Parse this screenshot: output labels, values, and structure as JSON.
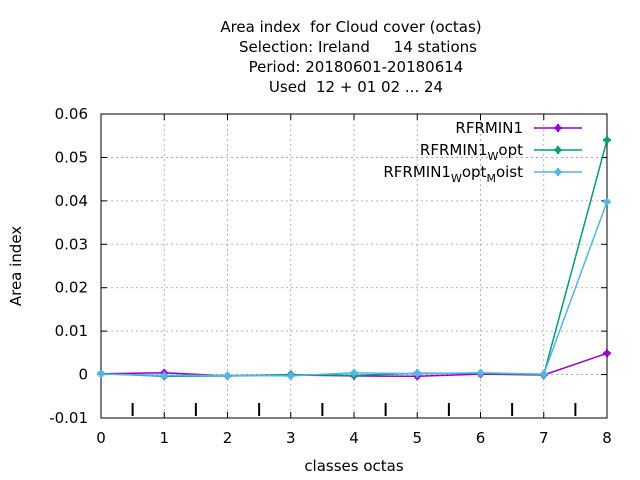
{
  "chart_data": {
    "type": "line",
    "title_lines": [
      "Area index  for Cloud cover (octas)",
      "Selection: Ireland     14 stations",
      "Period: 20180601-20180614",
      "Used  12 + 01 02 ... 24"
    ],
    "xlabel": "classes octas",
    "ylabel": "Area index",
    "xlim": [
      0,
      8
    ],
    "ylim": [
      -0.01,
      0.06
    ],
    "x_ticks": [
      0,
      1,
      2,
      3,
      4,
      5,
      6,
      7,
      8
    ],
    "x_tick_labels": [
      "0",
      "1",
      "2",
      "3",
      "4",
      "5",
      "6",
      "7",
      "8"
    ],
    "y_ticks": [
      -0.01,
      0,
      0.01,
      0.02,
      0.03,
      0.04,
      0.05,
      0.06
    ],
    "y_tick_labels": [
      "-0.01",
      "0",
      "0.01",
      "0.02",
      "0.03",
      "0.04",
      "0.05",
      "0.06"
    ],
    "grid": true,
    "legend_position": "top-right",
    "x": [
      0,
      1,
      2,
      3,
      4,
      5,
      6,
      7,
      8
    ],
    "series": [
      {
        "name": "RFRMIN1",
        "legend_main": "RFRMIN1",
        "legend_parts": [],
        "color": "#9400d3",
        "values": [
          0.0002,
          0.0004,
          -0.0003,
          -0.0001,
          -0.0003,
          -0.0004,
          0.0001,
          -0.0001,
          0.0049
        ]
      },
      {
        "name": "RFRMIN1_Wopt",
        "legend_main": "RFRMIN1",
        "legend_parts": [
          {
            "text": "W",
            "sub": true
          },
          {
            "text": "opt",
            "sub": false
          }
        ],
        "color": "#009e73",
        "values": [
          0.0002,
          -0.0004,
          -0.0003,
          0.0,
          -0.0002,
          0.0003,
          0.0003,
          0.0,
          0.054
        ]
      },
      {
        "name": "RFRMIN1_Wopt_Moist",
        "legend_main": "RFRMIN1",
        "legend_parts": [
          {
            "text": "W",
            "sub": true
          },
          {
            "text": "opt",
            "sub": false
          },
          {
            "text": "M",
            "sub": true
          },
          {
            "text": "oist",
            "sub": false
          }
        ],
        "color": "#56b4e9",
        "values": [
          0.0001,
          -0.0002,
          -0.0002,
          -0.0003,
          0.0004,
          0.0002,
          0.0004,
          0.0001,
          0.0398
        ]
      }
    ]
  }
}
